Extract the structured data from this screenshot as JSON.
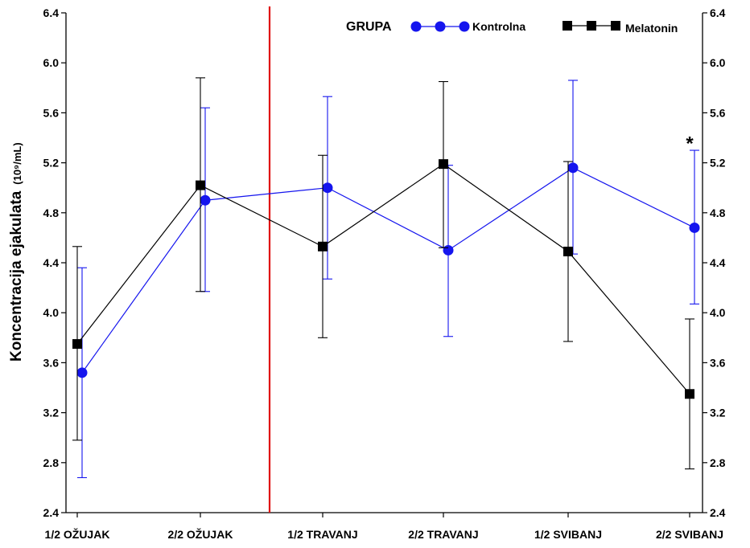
{
  "chart_data": {
    "type": "line",
    "title": "",
    "ylabel": "Koncentracija ejakulata",
    "ylabel_unit": "(10⁹/mL)",
    "ylim": [
      2.4,
      6.4
    ],
    "yticks": [
      "2.4",
      "2.8",
      "3.2",
      "3.6",
      "4.0",
      "4.4",
      "4.8",
      "5.2",
      "5.6",
      "6.0",
      "6.4"
    ],
    "y2ticks": [
      "2.4",
      "2.8",
      "3.2",
      "3.6",
      "4.0",
      "4.4",
      "4.8",
      "5.2",
      "5.6",
      "6.0",
      "6.4"
    ],
    "categories": [
      "1/2 OŽUJAK",
      "2/2 OŽUJAK",
      "1/2 TRAVANJ",
      "2/2 TRAVANJ",
      "1/2 SVIBANJ",
      "2/2 SVIBANJ"
    ],
    "legend": {
      "title": "GRUPA",
      "position": "top-right"
    },
    "grid": false,
    "vertical_reference_line": {
      "between": [
        "2/2 OŽUJAK",
        "1/2 TRAVANJ"
      ],
      "color": "#e01010"
    },
    "series": [
      {
        "name": "Kontrolna",
        "color": "#1515ee",
        "marker": "circle",
        "values": [
          3.52,
          4.9,
          5.0,
          4.5,
          5.16,
          4.68
        ],
        "error_low": [
          2.68,
          4.17,
          4.27,
          3.81,
          4.47,
          4.07
        ],
        "error_high": [
          4.36,
          5.64,
          5.73,
          5.18,
          5.86,
          5.3
        ]
      },
      {
        "name": "Melatonin",
        "color": "#000000",
        "marker": "square",
        "values": [
          3.75,
          5.02,
          4.53,
          5.19,
          4.49,
          3.35
        ],
        "error_low": [
          2.98,
          4.17,
          3.8,
          4.52,
          3.77,
          2.75
        ],
        "error_high": [
          4.53,
          5.88,
          5.26,
          5.85,
          5.21,
          3.95
        ]
      }
    ],
    "annotations": [
      {
        "text": "*",
        "category": "2/2 SVIBANJ",
        "y": 5.42
      }
    ]
  }
}
